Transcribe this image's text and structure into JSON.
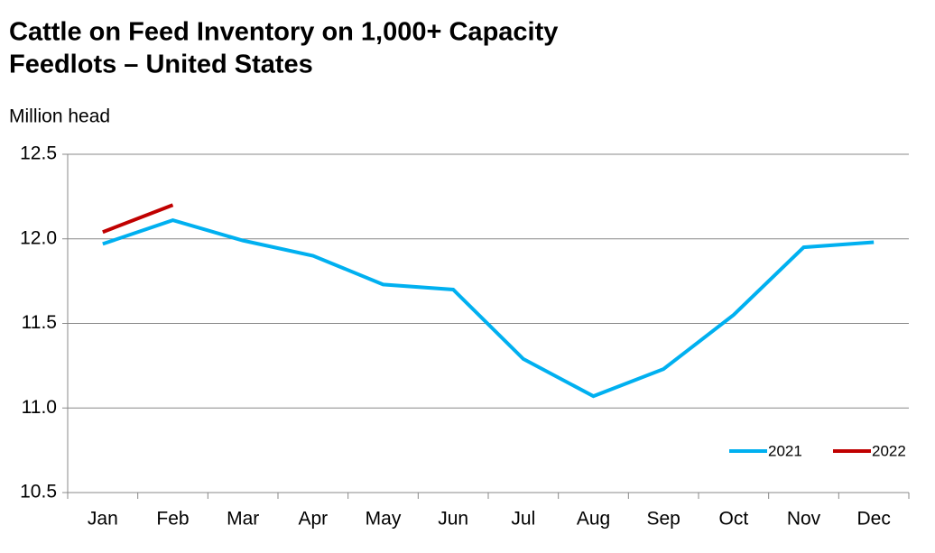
{
  "chart_data": {
    "type": "line",
    "title": [
      "Cattle on Feed Inventory on 1,000+ Capacity",
      "Feedlots – United States"
    ],
    "y_label": "Million head",
    "categories": [
      "Jan",
      "Feb",
      "Mar",
      "Apr",
      "May",
      "Jun",
      "Jul",
      "Aug",
      "Sep",
      "Oct",
      "Nov",
      "Dec"
    ],
    "series": [
      {
        "name": "2021",
        "color": "#00b0f0",
        "values": [
          11.97,
          12.11,
          11.99,
          11.9,
          11.73,
          11.7,
          11.29,
          11.07,
          11.23,
          11.55,
          11.95,
          11.98
        ]
      },
      {
        "name": "2022",
        "color": "#c00000",
        "values": [
          12.04,
          12.2,
          null,
          null,
          null,
          null,
          null,
          null,
          null,
          null,
          null,
          null
        ]
      }
    ],
    "ylim": [
      10.5,
      12.5
    ],
    "yticks": [
      10.5,
      {
        "value": 11,
        "label": "11.0"
      },
      11.5,
      {
        "value": 12,
        "label": "12.0"
      },
      12.5
    ],
    "grid": true,
    "legend": "lower right"
  }
}
